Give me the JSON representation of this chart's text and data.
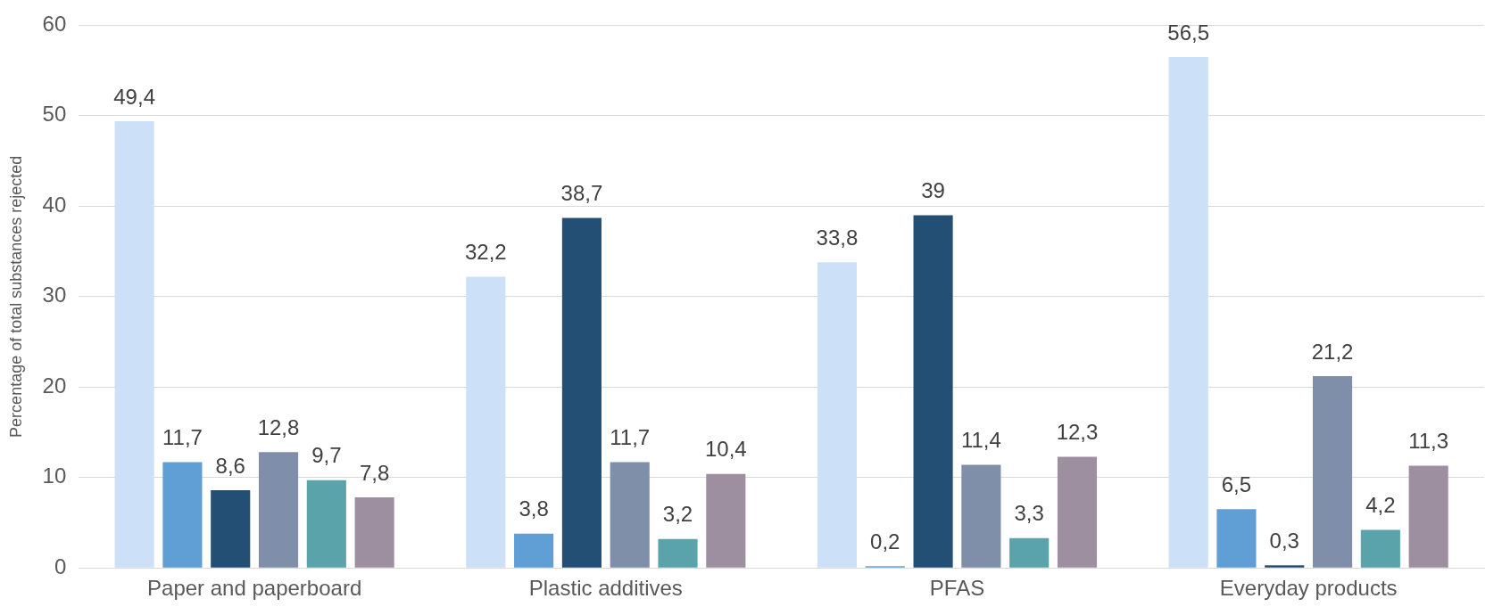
{
  "chart_data": {
    "type": "bar",
    "ylabel": "Percentage of total substances rejected",
    "categories": [
      "Paper and paperboard",
      "Plastic additives",
      "PFAS",
      "Everyday products"
    ],
    "series": [
      {
        "color": "#cce0f8",
        "values": [
          49.4,
          32.2,
          33.8,
          56.5
        ],
        "value_labels": [
          "49,4",
          "32,2",
          "33,8",
          "56,5"
        ]
      },
      {
        "color": "#609fd6",
        "values": [
          11.7,
          3.8,
          0.2,
          6.5
        ],
        "value_labels": [
          "11,7",
          "3,8",
          "0,2",
          "6,5"
        ]
      },
      {
        "color": "#244f75",
        "values": [
          8.6,
          38.7,
          39,
          0.3
        ],
        "value_labels": [
          "8,6",
          "38,7",
          "39",
          "0,3"
        ]
      },
      {
        "color": "#7f8fa9",
        "values": [
          12.8,
          11.7,
          11.4,
          21.2
        ],
        "value_labels": [
          "12,8",
          "11,7",
          "11,4",
          "21,2"
        ]
      },
      {
        "color": "#5ba3ab",
        "values": [
          9.7,
          3.2,
          3.3,
          4.2
        ],
        "value_labels": [
          "9,7",
          "3,2",
          "3,3",
          "4,2"
        ]
      },
      {
        "color": "#9e8fa0",
        "values": [
          7.8,
          10.4,
          12.3,
          11.3
        ],
        "value_labels": [
          "7,8",
          "10,4",
          "12,3",
          "11,3"
        ]
      }
    ],
    "ylim": [
      0,
      60
    ],
    "yticks": [
      0,
      10,
      20,
      30,
      40,
      50,
      60
    ],
    "grid": "y",
    "legend": false
  }
}
